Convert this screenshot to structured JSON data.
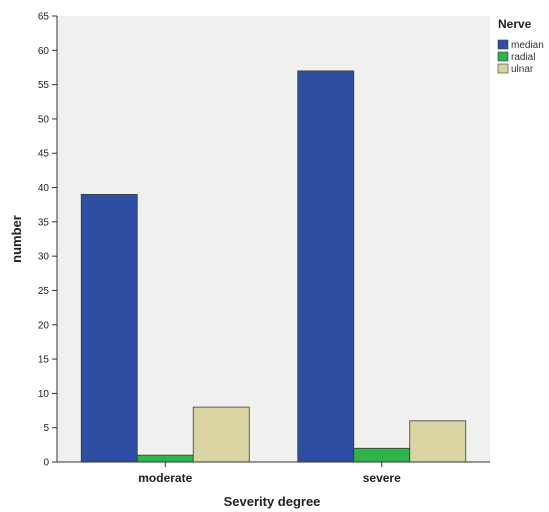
{
  "chart_data": {
    "type": "bar",
    "categories": [
      "moderate",
      "severe"
    ],
    "series": [
      {
        "name": "median",
        "values": [
          39,
          57
        ],
        "color": "#2f4ea3"
      },
      {
        "name": "radial",
        "values": [
          1,
          2
        ],
        "color": "#2fb34a"
      },
      {
        "name": "ulnar",
        "values": [
          8,
          6
        ],
        "color": "#d9d4a2"
      }
    ],
    "xlabel": "Severity degree",
    "ylabel": "number",
    "ylim": [
      0,
      65
    ],
    "yticks": [
      0,
      5,
      10,
      15,
      20,
      25,
      30,
      35,
      40,
      45,
      50,
      55,
      60,
      65
    ],
    "grid": false,
    "legend": {
      "title": "Nerve",
      "position": "right"
    },
    "plot_background": "#f0f0ef"
  }
}
